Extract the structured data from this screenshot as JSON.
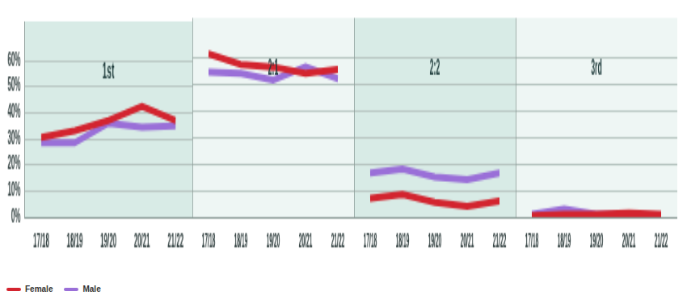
{
  "chart_data": [
    {
      "type": "line",
      "title": "1st",
      "categories": [
        "17/18",
        "18/19",
        "19/20",
        "20/21",
        "21/22"
      ],
      "series": [
        {
          "name": "Female",
          "color": "#d3242f",
          "values": [
            30.5,
            33,
            37,
            42.5,
            37
          ]
        },
        {
          "name": "Male",
          "color": "#9a6fd8",
          "values": [
            28.5,
            28.5,
            36,
            34.5,
            35
          ]
        }
      ],
      "ylim": [
        0,
        75
      ],
      "yticks": [
        {
          "value": 0,
          "label": "0%"
        },
        {
          "value": 10,
          "label": "10%"
        },
        {
          "value": 20,
          "label": "20%"
        },
        {
          "value": 30,
          "label": "30%"
        },
        {
          "value": 40,
          "label": "40%"
        },
        {
          "value": 50,
          "label": "50%"
        },
        {
          "value": 60,
          "label": "60%"
        }
      ],
      "grid": true,
      "legend": "bottom left"
    },
    {
      "type": "line",
      "title": "2:1",
      "categories": [
        "17/18",
        "18/19",
        "19/20",
        "20/21",
        "21/22"
      ],
      "series": [
        {
          "name": "Female",
          "color": "#d3242f",
          "values": [
            61.5,
            57.5,
            56.5,
            54,
            55.5
          ]
        },
        {
          "name": "Male",
          "color": "#9a6fd8",
          "values": [
            54.5,
            54,
            51.5,
            56.5,
            52
          ]
        }
      ],
      "ylim": [
        0,
        75
      ],
      "yticks": [
        {
          "value": 0,
          "label": "0%"
        },
        {
          "value": 10,
          "label": "10%"
        },
        {
          "value": 20,
          "label": "20%"
        },
        {
          "value": 30,
          "label": "30%"
        },
        {
          "value": 40,
          "label": "40%"
        },
        {
          "value": 50,
          "label": "50%"
        },
        {
          "value": 60,
          "label": "60%"
        }
      ],
      "grid": true,
      "tick_labels": "x"
    },
    {
      "type": "line",
      "title": "2:2",
      "categories": [
        "17/18",
        "18/19",
        "19/20",
        "20/21",
        "21/22"
      ],
      "series": [
        {
          "name": "Female",
          "color": "#d3242f",
          "values": [
            7,
            8.5,
            5.5,
            4,
            6
          ]
        },
        {
          "name": "Male",
          "color": "#9a6fd8",
          "values": [
            16.5,
            18,
            15,
            14,
            16.5
          ]
        }
      ],
      "ylim": [
        0,
        75
      ],
      "yticks": [
        {
          "value": 0,
          "label": "0%"
        },
        {
          "value": 10,
          "label": "10%"
        },
        {
          "value": 20,
          "label": "20%"
        },
        {
          "value": 30,
          "label": "30%"
        },
        {
          "value": 40,
          "label": "40%"
        },
        {
          "value": 50,
          "label": "50%"
        },
        {
          "value": 60,
          "label": "60%"
        }
      ],
      "grid": true,
      "tick_labels": "x"
    },
    {
      "type": "line",
      "title": "3rd",
      "categories": [
        "17/18",
        "18/19",
        "19/20",
        "20/21",
        "21/22"
      ],
      "series": [
        {
          "name": "Female",
          "color": "#d3242f",
          "values": [
            0.5,
            1,
            1,
            1.5,
            1
          ]
        },
        {
          "name": "Male",
          "color": "#9a6fd8",
          "values": [
            1,
            3,
            1,
            1,
            0.5
          ]
        }
      ],
      "ylim": [
        0,
        75
      ],
      "yticks": [
        {
          "value": 0,
          "label": "0%"
        },
        {
          "value": 10,
          "label": "10%"
        },
        {
          "value": 20,
          "label": "20%"
        },
        {
          "value": 30,
          "label": "30%"
        },
        {
          "value": 40,
          "label": "40%"
        },
        {
          "value": 50,
          "label": "50%"
        },
        {
          "value": 60,
          "label": "60%"
        }
      ],
      "grid": true,
      "tick_labels": "x"
    }
  ]
}
